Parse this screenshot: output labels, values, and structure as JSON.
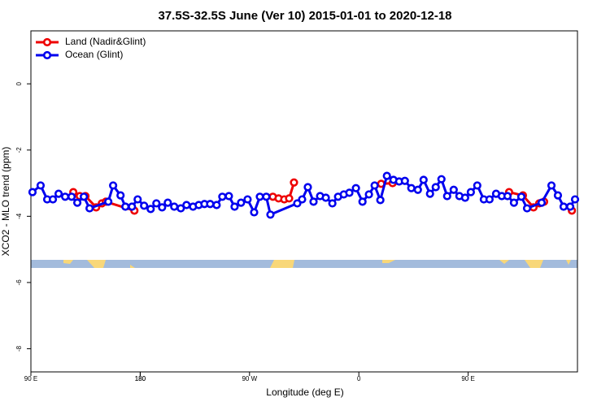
{
  "chart_data": {
    "type": "line",
    "title": "37.5S-32.5S June (Ver 10)   2015-01-01 to 2020-12-18",
    "x_label": "Longitude (deg E)",
    "y_label": "XCO2 - MLO trend (ppm)",
    "xlim": [
      90,
      540
    ],
    "xticks": [
      {
        "value": 90,
        "label": "90 E"
      },
      180,
      {
        "value": 270,
        "label": "90 W"
      },
      {
        "value": 360,
        "label": "0"
      },
      {
        "value": 450,
        "label": "90 E"
      },
      180.0001
    ],
    "ylim": [
      -8.7,
      1.6
    ],
    "yticks": [
      0,
      -2,
      -4,
      -6,
      -8
    ],
    "legend": "top-left",
    "series": [
      {
        "name": "Land (Nadir&Glint)",
        "color": "#ee0000",
        "x": [
          124.9,
          130.2,
          134.9,
          143.7,
          148.4,
          151.7,
          175.2,
          232,
          289.2,
          293.9,
          298.6,
          302.6,
          306.6,
          343,
          378.4,
          387.8,
          435,
          483.7,
          495.1,
          503.8,
          508.5,
          512.5,
          524,
          535.4
        ],
        "values": [
          -3.27,
          -3.39,
          -3.39,
          -3.73,
          -3.61,
          -3.56,
          -3.83,
          null,
          -3.41,
          -3.46,
          -3.49,
          -3.46,
          -2.98,
          null,
          -3.02,
          -3.0,
          null,
          -3.27,
          -3.37,
          -3.73,
          -3.61,
          -3.56,
          null,
          -3.83
        ]
      },
      {
        "name": "Ocean (Glint)",
        "color": "#0000ee",
        "x": [
          91.3,
          98.0,
          103.4,
          108.1,
          112.8,
          118.2,
          123.5,
          128.2,
          133.6,
          138.3,
          153.7,
          157.7,
          163.8,
          167.8,
          173.2,
          177.9,
          183.2,
          188.6,
          193.3,
          198.0,
          202.7,
          208.0,
          213.4,
          218.1,
          223.5,
          228.2,
          232.9,
          237.6,
          242.9,
          247.6,
          253.0,
          257.7,
          263.0,
          268.4,
          273.8,
          278.5,
          283.8,
          287.2,
          309.3,
          313.3,
          318.0,
          322.7,
          328.1,
          332.8,
          338.2,
          342.9,
          347.6,
          352.2,
          357.6,
          363.0,
          368.3,
          373.0,
          377.7,
          383.1,
          388.5,
          393.2,
          397.9,
          403.2,
          408.6,
          413.3,
          418.6,
          423.3,
          428.0,
          432.7,
          438.1,
          442.8,
          447.5,
          452.2,
          457.5,
          462.9,
          467.6,
          473.0,
          477.7,
          482.4,
          487.7,
          493.8,
          498.5,
          510.5,
          518.6,
          523.9,
          528.6,
          534.0,
          538.0
        ],
        "values": [
          -3.27,
          -3.07,
          -3.49,
          -3.49,
          -3.32,
          -3.41,
          -3.41,
          -3.59,
          -3.41,
          -3.76,
          -3.56,
          -3.07,
          -3.37,
          -3.71,
          -3.71,
          -3.49,
          -3.68,
          -3.78,
          -3.61,
          -3.73,
          -3.59,
          -3.71,
          -3.76,
          -3.66,
          -3.71,
          -3.66,
          -3.63,
          -3.63,
          -3.66,
          -3.41,
          -3.39,
          -3.71,
          -3.59,
          -3.49,
          -3.88,
          -3.41,
          -3.41,
          -3.95,
          -3.61,
          -3.49,
          -3.12,
          -3.56,
          -3.39,
          -3.44,
          -3.61,
          -3.41,
          -3.34,
          -3.29,
          -3.15,
          -3.56,
          -3.34,
          -3.07,
          -3.51,
          -2.78,
          -2.9,
          -2.95,
          -2.93,
          -3.15,
          -3.2,
          -2.9,
          -3.32,
          -3.12,
          -2.88,
          -3.39,
          -3.2,
          -3.39,
          -3.44,
          -3.27,
          -3.07,
          -3.49,
          -3.49,
          -3.32,
          -3.39,
          -3.39,
          -3.59,
          -3.41,
          -3.76,
          -3.59,
          -3.07,
          -3.37,
          -3.71,
          -3.71,
          -3.49
        ]
      }
    ]
  }
}
